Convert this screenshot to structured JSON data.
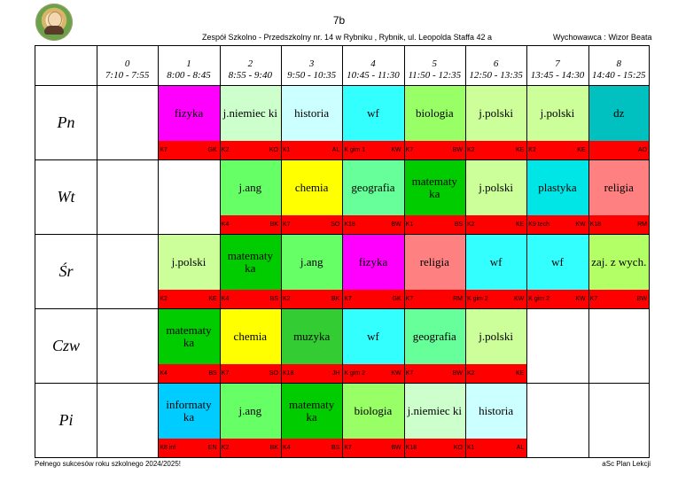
{
  "header": {
    "class_name": "7b",
    "school": "Zespół Szkolno - Przedszkolny nr. 14 w Rybniku  , Rybnik, ul. Leopolda Staffa 42 a",
    "tutor": "Wychowawca : Wizor Beata"
  },
  "periods": [
    {
      "num": "0",
      "time": "7:10 - 7:55"
    },
    {
      "num": "1",
      "time": "8:00 - 8:45"
    },
    {
      "num": "2",
      "time": "8:55 - 9:40"
    },
    {
      "num": "3",
      "time": "9:50 - 10:35"
    },
    {
      "num": "4",
      "time": "10:45 - 11:30"
    },
    {
      "num": "5",
      "time": "11:50 - 12:35"
    },
    {
      "num": "6",
      "time": "12:50 - 13:35"
    },
    {
      "num": "7",
      "time": "13:45 - 14:30"
    },
    {
      "num": "8",
      "time": "14:40 - 15:25"
    }
  ],
  "days": [
    "Pn",
    "Wt",
    "Śr",
    "Czw",
    "Pi"
  ],
  "lessons": [
    {
      "day": 0,
      "period": 1,
      "subject": "fizyka",
      "room": "K7",
      "teacher": "GK",
      "color": "#ff00ff"
    },
    {
      "day": 0,
      "period": 2,
      "subject": "j.niemiec ki",
      "room": "K2",
      "teacher": "KO",
      "color": "#ccffcc"
    },
    {
      "day": 0,
      "period": 3,
      "subject": "historia",
      "room": "K1",
      "teacher": "AL",
      "color": "#ccffff"
    },
    {
      "day": 0,
      "period": 4,
      "subject": "wf",
      "room": "K gim 1",
      "teacher": "KW",
      "color": "#33ffff"
    },
    {
      "day": 0,
      "period": 5,
      "subject": "biologia",
      "room": "K7",
      "teacher": "BW",
      "color": "#99ff66"
    },
    {
      "day": 0,
      "period": 6,
      "subject": "j.polski",
      "room": "K2",
      "teacher": "KE",
      "color": "#ccff99"
    },
    {
      "day": 0,
      "period": 7,
      "subject": "j.polski",
      "room": "K2",
      "teacher": "KE",
      "color": "#ccff99"
    },
    {
      "day": 0,
      "period": 8,
      "subject": "dz",
      "room": "",
      "teacher": "AO",
      "color": "#00c0c0"
    },
    {
      "day": 1,
      "period": 2,
      "subject": "j.ang",
      "room": "K4",
      "teacher": "BK",
      "color": "#66ff66"
    },
    {
      "day": 1,
      "period": 3,
      "subject": "chemia",
      "room": "K7",
      "teacher": "SO",
      "color": "#ffff00"
    },
    {
      "day": 1,
      "period": 4,
      "subject": "geografia",
      "room": "K18",
      "teacher": "BW",
      "color": "#66ff99"
    },
    {
      "day": 1,
      "period": 5,
      "subject": "matematy ka",
      "room": "K1",
      "teacher": "BS",
      "color": "#00cc00"
    },
    {
      "day": 1,
      "period": 6,
      "subject": "j.polski",
      "room": "K2",
      "teacher": "KE",
      "color": "#ccff99"
    },
    {
      "day": 1,
      "period": 7,
      "subject": "plastyka",
      "room": "K9 tech",
      "teacher": "KW",
      "color": "#00e5e5"
    },
    {
      "day": 1,
      "period": 8,
      "subject": "religia",
      "room": "K18",
      "teacher": "RM",
      "color": "#ff8080"
    },
    {
      "day": 2,
      "period": 1,
      "subject": "j.polski",
      "room": "K2",
      "teacher": "KE",
      "color": "#ccff99"
    },
    {
      "day": 2,
      "period": 2,
      "subject": "matematy ka",
      "room": "K4",
      "teacher": "BS",
      "color": "#00cc00"
    },
    {
      "day": 2,
      "period": 3,
      "subject": "j.ang",
      "room": "K2",
      "teacher": "BK",
      "color": "#66ff66"
    },
    {
      "day": 2,
      "period": 4,
      "subject": "fizyka",
      "room": "K7",
      "teacher": "GK",
      "color": "#ff00ff"
    },
    {
      "day": 2,
      "period": 5,
      "subject": "religia",
      "room": "K7",
      "teacher": "RM",
      "color": "#ff8080"
    },
    {
      "day": 2,
      "period": 6,
      "subject": "wf",
      "room": "K gim 2",
      "teacher": "KW",
      "color": "#33ffff"
    },
    {
      "day": 2,
      "period": 7,
      "subject": "wf",
      "room": "K gim 2",
      "teacher": "KW",
      "color": "#33ffff"
    },
    {
      "day": 2,
      "period": 8,
      "subject": "zaj. z wych.",
      "room": "K7",
      "teacher": "BW",
      "color": "#b3ff66"
    },
    {
      "day": 3,
      "period": 1,
      "subject": "matematy ka",
      "room": "K4",
      "teacher": "BS",
      "color": "#00cc00"
    },
    {
      "day": 3,
      "period": 2,
      "subject": "chemia",
      "room": "K7",
      "teacher": "SO",
      "color": "#ffff00"
    },
    {
      "day": 3,
      "period": 3,
      "subject": "muzyka",
      "room": "K18",
      "teacher": "JH",
      "color": "#33cc33"
    },
    {
      "day": 3,
      "period": 4,
      "subject": "wf",
      "room": "K gim 2",
      "teacher": "KW",
      "color": "#33ffff"
    },
    {
      "day": 3,
      "period": 5,
      "subject": "geografia",
      "room": "K7",
      "teacher": "BW",
      "color": "#66ff99"
    },
    {
      "day": 3,
      "period": 6,
      "subject": "j.polski",
      "room": "K2",
      "teacher": "KE",
      "color": "#ccff99"
    },
    {
      "day": 4,
      "period": 1,
      "subject": "informaty ka",
      "room": "K8 inf",
      "teacher": "EN",
      "color": "#00ccff"
    },
    {
      "day": 4,
      "period": 2,
      "subject": "j.ang",
      "room": "K2",
      "teacher": "BK",
      "color": "#66ff66"
    },
    {
      "day": 4,
      "period": 3,
      "subject": "matematy ka",
      "room": "K4",
      "teacher": "BS",
      "color": "#00cc00"
    },
    {
      "day": 4,
      "period": 4,
      "subject": "biologia",
      "room": "K7",
      "teacher": "BW",
      "color": "#99ff66"
    },
    {
      "day": 4,
      "period": 5,
      "subject": "j.niemiec ki",
      "room": "K18",
      "teacher": "KO",
      "color": "#ccffcc"
    },
    {
      "day": 4,
      "period": 6,
      "subject": "historia",
      "room": "K1",
      "teacher": "AL",
      "color": "#ccffff"
    }
  ],
  "footer": {
    "message": "Pełnego sukcesów roku szkolnego 2024/2025!",
    "generator": "aSc Plan Lekcji"
  }
}
